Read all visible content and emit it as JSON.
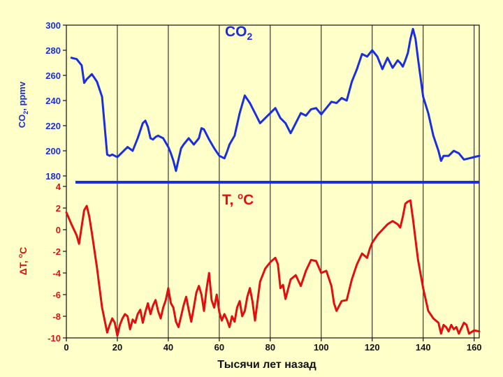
{
  "chart_data": [
    {
      "type": "line",
      "title": "CO2",
      "ylabel": "CO2, ppmv",
      "xlabel": "Тысячи лет назад",
      "xlim": [
        0,
        162
      ],
      "ylim": [
        180,
        300
      ],
      "yticks": [
        180,
        200,
        220,
        240,
        260,
        280,
        300
      ],
      "color": "#1a2ee0",
      "x": [
        2,
        4,
        6,
        7,
        8,
        10,
        12,
        14,
        16,
        17,
        18,
        19,
        20,
        21,
        22,
        24,
        26,
        28,
        30,
        31,
        32,
        33,
        34,
        35,
        36,
        38,
        40,
        41,
        42,
        43,
        44,
        45,
        46,
        48,
        50,
        52,
        53,
        54,
        56,
        58,
        60,
        62,
        63,
        64,
        66,
        68,
        70,
        72,
        74,
        76,
        78,
        80,
        82,
        84,
        86,
        88,
        90,
        92,
        94,
        96,
        98,
        100,
        102,
        104,
        106,
        108,
        110,
        112,
        114,
        116,
        118,
        120,
        122,
        124,
        126,
        128,
        130,
        131,
        132,
        133,
        134,
        135,
        136,
        137,
        138,
        140,
        142,
        144,
        146,
        147,
        148,
        150,
        152,
        154,
        156,
        158,
        160,
        162
      ],
      "values": [
        274,
        273,
        268,
        254,
        257,
        261,
        255,
        243,
        197,
        196,
        197,
        196,
        195,
        197,
        199,
        203,
        200,
        210,
        222,
        224,
        219,
        210,
        209,
        211,
        212,
        210,
        203,
        198,
        192,
        184,
        193,
        202,
        205,
        210,
        205,
        210,
        218,
        217,
        209,
        202,
        196,
        194,
        199,
        205,
        212,
        230,
        244,
        238,
        230,
        222,
        226,
        230,
        234,
        226,
        222,
        214,
        222,
        230,
        228,
        233,
        234,
        229,
        234,
        239,
        238,
        242,
        240,
        255,
        265,
        277,
        275,
        280,
        275,
        265,
        274,
        266,
        272,
        270,
        267,
        272,
        278,
        289,
        297,
        289,
        273,
        243,
        230,
        212,
        200,
        192,
        196,
        196,
        200,
        198,
        193,
        194,
        195,
        196
      ]
    },
    {
      "type": "line",
      "title": "T, °C",
      "ylabel": "ΔT, °C",
      "xlabel": "Тысячи лет назад",
      "xlim": [
        0,
        162
      ],
      "ylim": [
        -10,
        4
      ],
      "yticks": [
        -10,
        -8,
        -6,
        -4,
        -2,
        0,
        2,
        4
      ],
      "color": "#e01010",
      "x": [
        0,
        2,
        4,
        5,
        6,
        7,
        8,
        9,
        10,
        12,
        14,
        16,
        17,
        18,
        19,
        20,
        21,
        22,
        23,
        24,
        25,
        26,
        27,
        28,
        29,
        30,
        31,
        32,
        33,
        34,
        35,
        36,
        37,
        38,
        39,
        40,
        41,
        42,
        43,
        44,
        45,
        46,
        47,
        48,
        49,
        50,
        51,
        52,
        53,
        54,
        55,
        56,
        57,
        58,
        59,
        60,
        61,
        62,
        63,
        64,
        65,
        66,
        67,
        68,
        69,
        70,
        71,
        72,
        73,
        74,
        76,
        78,
        80,
        82,
        83,
        84,
        85,
        86,
        88,
        90,
        92,
        94,
        96,
        98,
        100,
        102,
        104,
        105,
        106,
        108,
        110,
        112,
        114,
        116,
        118,
        119,
        120,
        122,
        124,
        126,
        128,
        130,
        131,
        132,
        133,
        134,
        135,
        136,
        138,
        140,
        142,
        144,
        146,
        147,
        148,
        149,
        150,
        151,
        152,
        153,
        154,
        156,
        157,
        158,
        160,
        162
      ],
      "values": [
        1.6,
        0.5,
        -0.5,
        -1.3,
        0.3,
        1.8,
        2.2,
        1.2,
        -0.3,
        -3.5,
        -7.2,
        -9.5,
        -8.8,
        -8.2,
        -8.6,
        -9.8,
        -8.8,
        -8.2,
        -7.8,
        -8.0,
        -9.2,
        -8.3,
        -8.6,
        -7.8,
        -7.4,
        -8.6,
        -7.6,
        -6.8,
        -7.8,
        -7.0,
        -6.5,
        -7.5,
        -8.2,
        -7.2,
        -6.5,
        -5.4,
        -6.8,
        -7.2,
        -8.5,
        -9.0,
        -8.0,
        -7.0,
        -6.2,
        -7.4,
        -8.5,
        -7.2,
        -5.8,
        -5.2,
        -6.0,
        -7.5,
        -5.5,
        -4.0,
        -6.5,
        -7.2,
        -6.0,
        -7.6,
        -8.4,
        -7.8,
        -8.3,
        -9.0,
        -8.0,
        -8.5,
        -7.2,
        -6.6,
        -8.0,
        -7.5,
        -6.2,
        -5.4,
        -6.6,
        -8.4,
        -4.8,
        -3.6,
        -3.0,
        -2.6,
        -3.2,
        -5.4,
        -5.1,
        -6.4,
        -4.6,
        -4.2,
        -5.2,
        -3.8,
        -2.8,
        -2.9,
        -4.0,
        -3.8,
        -5.2,
        -6.8,
        -7.5,
        -6.6,
        -6.5,
        -4.6,
        -3.2,
        -2.2,
        -2.6,
        -1.8,
        -1.2,
        -0.5,
        0.0,
        0.5,
        0.8,
        0.5,
        0.2,
        1.2,
        2.4,
        2.6,
        2.7,
        1.0,
        -2.8,
        -5.4,
        -7.5,
        -8.2,
        -8.6,
        -9.6,
        -8.8,
        -9.0,
        -9.4,
        -8.8,
        -9.2,
        -9.0,
        -9.6,
        -8.6,
        -8.8,
        -9.6,
        -9.3,
        -9.4
      ]
    }
  ],
  "xticks": [
    0,
    20,
    40,
    60,
    80,
    100,
    120,
    140,
    160
  ],
  "xlabel": "Тысячи лет назад",
  "gridlines_x": [
    20,
    40,
    60,
    80,
    100,
    120,
    140,
    160
  ]
}
